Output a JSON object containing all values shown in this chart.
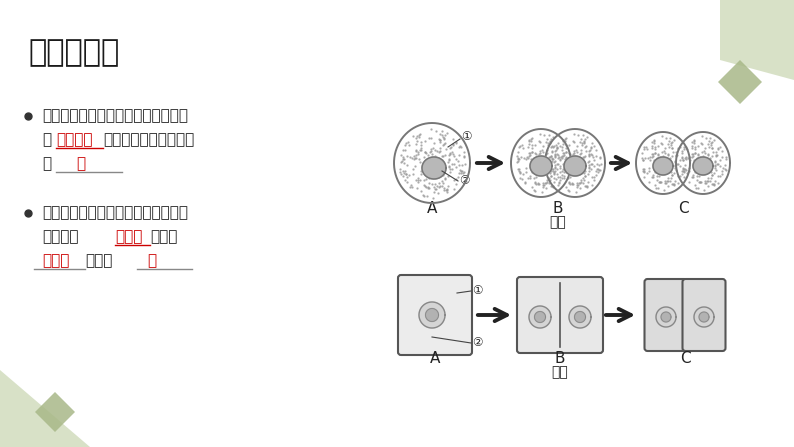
{
  "title": "细胞的分裂",
  "bg_color": "#ffffff",
  "title_color": "#1a1a1a",
  "diamond_color_light": "#c8d5b0",
  "diamond_color_dark": "#a8b888",
  "bullet1_text1": "如果是动物细胞，细胞膜从细胞的中",
  "bullet1_text2": "部",
  "bullet1_red1": "向内凹陷",
  "bullet1_text3": "，缢裂为两个细胞。如",
  "bullet1_text4": "图",
  "bullet1_red2": "甲",
  "bullet2_text1": "若是植物细胞，则在原来的细胞中央",
  "bullet2_text2": "形成新的",
  "bullet2_red1": "细胞膜",
  "bullet2_text3": "和新的",
  "bullet2_red2": "细胞壁",
  "bullet2_text4": "。如图",
  "bullet2_red3": "乙",
  "red_color": "#cc0000",
  "arrow_color": "#222222",
  "cell_gray": "#aaaaaa",
  "nucleus_fill": "#b0b0b0",
  "dot_color": "#888888"
}
